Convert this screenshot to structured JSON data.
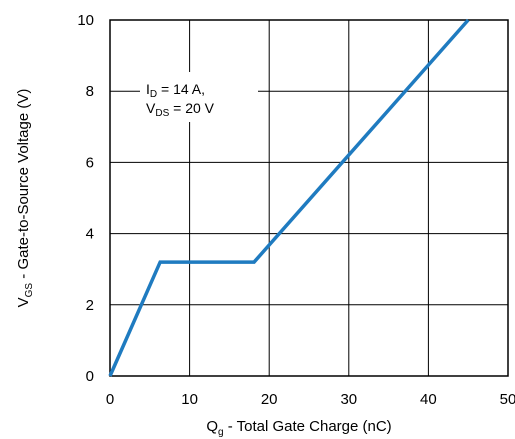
{
  "chart_data": {
    "type": "line",
    "title": "",
    "xlabel": {
      "main": "Q",
      "sub": "g",
      "rest": " - Total Gate Charge (nC)"
    },
    "ylabel": {
      "main": "V",
      "sub": "GS",
      "rest": " - Gate-to-Source Voltage (V)"
    },
    "xlim": [
      0,
      50
    ],
    "ylim": [
      0,
      10
    ],
    "x_ticks": [
      0,
      10,
      20,
      30,
      40,
      50
    ],
    "y_ticks": [
      0,
      2,
      4,
      6,
      8,
      10
    ],
    "grid": true,
    "series": [
      {
        "x": [
          0,
          6.3,
          18.1,
          45
        ],
        "y": [
          0,
          3.2,
          3.2,
          10
        ]
      }
    ],
    "annotation": {
      "line1": {
        "main": "I",
        "sub": "D",
        "rest": " = 14 A,"
      },
      "line2": {
        "main": "V",
        "sub": "DS",
        "rest": " = 20 V"
      }
    },
    "colors": {
      "line": "#1f7bc0",
      "grid": "#000000",
      "axis": "#000000"
    }
  }
}
